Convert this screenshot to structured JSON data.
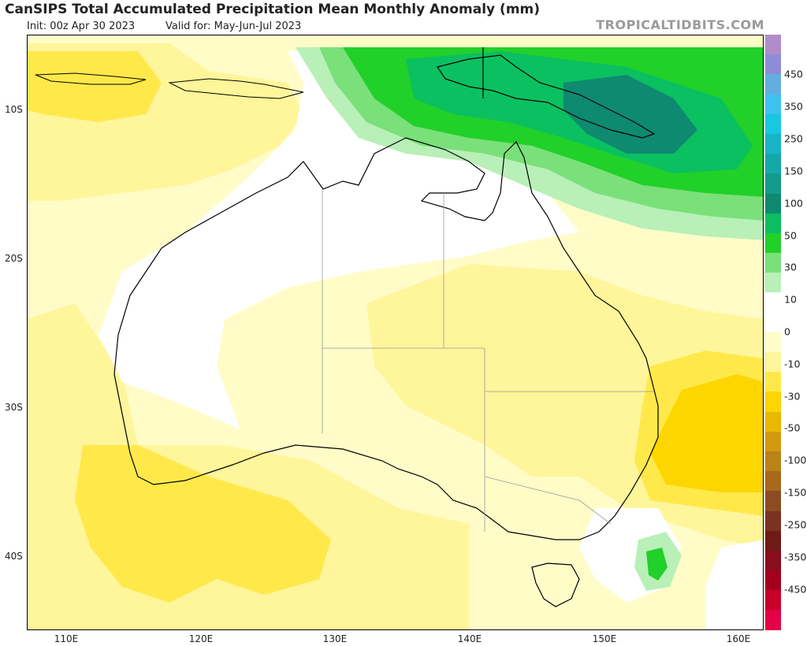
{
  "header": {
    "title": "CanSIPS Total Accumulated Precipitation Mean Monthly Anomaly (mm)",
    "init": "Init: 00z Apr 30 2023",
    "valid": "Valid for: May-Jun-Jul 2023",
    "brand": "TROPICALTIDBITS.COM"
  },
  "axes": {
    "lat_labels": [
      "10S",
      "20S",
      "30S",
      "40S"
    ],
    "lon_labels": [
      "110E",
      "120E",
      "130E",
      "140E",
      "150E",
      "160E"
    ]
  },
  "colorbar": {
    "labels": [
      "450",
      "350",
      "250",
      "150",
      "100",
      "50",
      "30",
      "10",
      "0",
      "-10",
      "-30",
      "-50",
      "-100",
      "-150",
      "-250",
      "-350",
      "-450"
    ],
    "colors": [
      "#b08cc8",
      "#8e8cd8",
      "#63aee0",
      "#3dc4ee",
      "#18c8e0",
      "#17b4c8",
      "#14a8a8",
      "#129c8c",
      "#0e8a70",
      "#0ac060",
      "#22d02a",
      "#7ae07a",
      "#b8f0b8",
      "#ffffff",
      "#ffffff",
      "#fffcc8",
      "#fff59a",
      "#ffe94a",
      "#fdd600",
      "#e9b800",
      "#d29a10",
      "#b88416",
      "#a8681e",
      "#8c4c22",
      "#7c3220",
      "#6e1a16",
      "#8a0e1c",
      "#a4001e",
      "#c8002a",
      "#e60046"
    ]
  },
  "map": {
    "lat_range": [
      "4S",
      "45S"
    ],
    "lon_range": [
      "107E",
      "162E"
    ],
    "colors": {
      "ocean_bg": "#fffcc8",
      "neutral": "#ffffff",
      "dry_10": "#fff59a",
      "dry_30": "#ffe94a",
      "dry_50": "#fdd600",
      "wet_10": "#b8f0b8",
      "wet_30": "#7ae07a",
      "wet_50": "#22d02a",
      "wet_100": "#0ac060",
      "wet_150": "#0e8a70",
      "coast": "#000000",
      "border": "#999999"
    }
  }
}
